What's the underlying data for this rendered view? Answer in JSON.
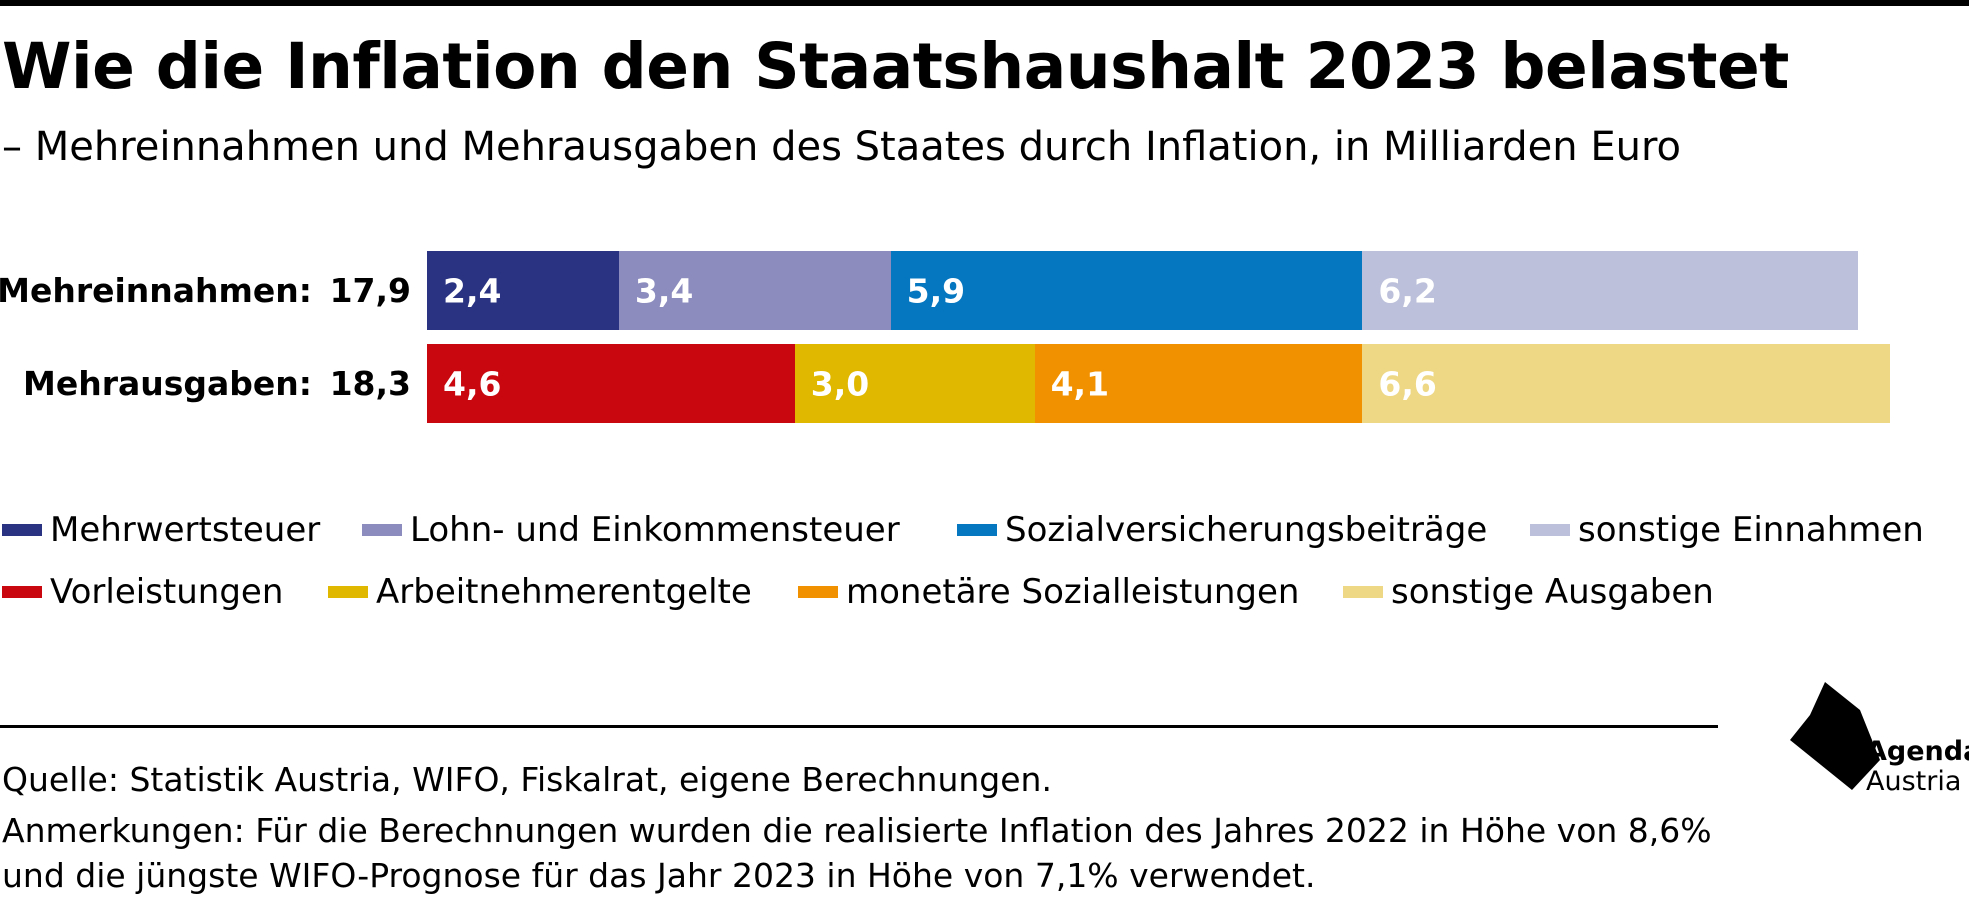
{
  "title": "Wie die Inflation den Staatshaushalt 2023 belastet",
  "subtitle": "– Mehreinnahmen und Mehrausgaben des Staates durch Inflation, in Milliarden Euro",
  "chart_data": {
    "type": "bar",
    "orientation": "horizontal",
    "stacked": true,
    "title": "Wie die Inflation den Staatshaushalt 2023 belastet",
    "subtitle": "– Mehreinnahmen und Mehrausgaben des Staates durch Inflation, in Milliarden Euro",
    "rows": [
      {
        "label": "Mehreinnahmen:",
        "total": "17,9",
        "segments": [
          {
            "name": "Mehrwertsteuer",
            "value": 2.4,
            "label": "2,4",
            "color": "#2a3382"
          },
          {
            "name": "Lohn- und Einkommensteuer",
            "value": 3.4,
            "label": "3,4",
            "color": "#8c8cbf"
          },
          {
            "name": "Sozialversicherungsbeiträge",
            "value": 5.9,
            "label": "5,9",
            "color": "#0577c1"
          },
          {
            "name": "sonstige Einnahmen",
            "value": 6.2,
            "label": "6,2",
            "color": "#bcc0da"
          }
        ]
      },
      {
        "label": "Mehrausgaben:",
        "total": "18,3",
        "segments": [
          {
            "name": "Vorleistungen",
            "value": 4.6,
            "label": "4,6",
            "color": "#c8070e"
          },
          {
            "name": "Arbeitnehmerentgelte",
            "value": 3.0,
            "label": "3,0",
            "color": "#e0b800"
          },
          {
            "name": "monetäre Sozialleistungen",
            "value": 4.1,
            "label": "4,1",
            "color": "#f29100"
          },
          {
            "name": "sonstige Ausgaben",
            "value": 6.6,
            "label": "6,6",
            "color": "#eed886"
          }
        ]
      }
    ],
    "xlim": [
      0,
      18.3
    ],
    "grid": false,
    "legend_position": "bottom"
  },
  "legend": [
    {
      "label": "Mehrwertsteuer",
      "color": "#2a3382"
    },
    {
      "label": "Lohn- und Einkommensteuer",
      "color": "#8c8cbf"
    },
    {
      "label": "Sozialversicherungsbeiträge",
      "color": "#0577c1"
    },
    {
      "label": "sonstige Einnahmen",
      "color": "#bcc0da"
    },
    {
      "label": "Vorleistungen",
      "color": "#c8070e"
    },
    {
      "label": "Arbeitnehmerentgelte",
      "color": "#e0b800"
    },
    {
      "label": "monetäre Sozialleistungen",
      "color": "#f29100"
    },
    {
      "label": "sonstige Ausgaben",
      "color": "#eed886"
    }
  ],
  "footer": {
    "source": "Quelle: Statistik Austria, WIFO, Fiskalrat, eigene Berechnungen.",
    "notes": "Anmerkungen: Für die Berechnungen wurden die realisierte Inflation des Jahres 2022 in Höhe von 8,6% und die jüngste WIFO-Prognose für das Jahr 2023 in Höhe von 7,1% verwendet."
  },
  "logo": {
    "line1": "Agenda",
    "line2": "Austria"
  }
}
